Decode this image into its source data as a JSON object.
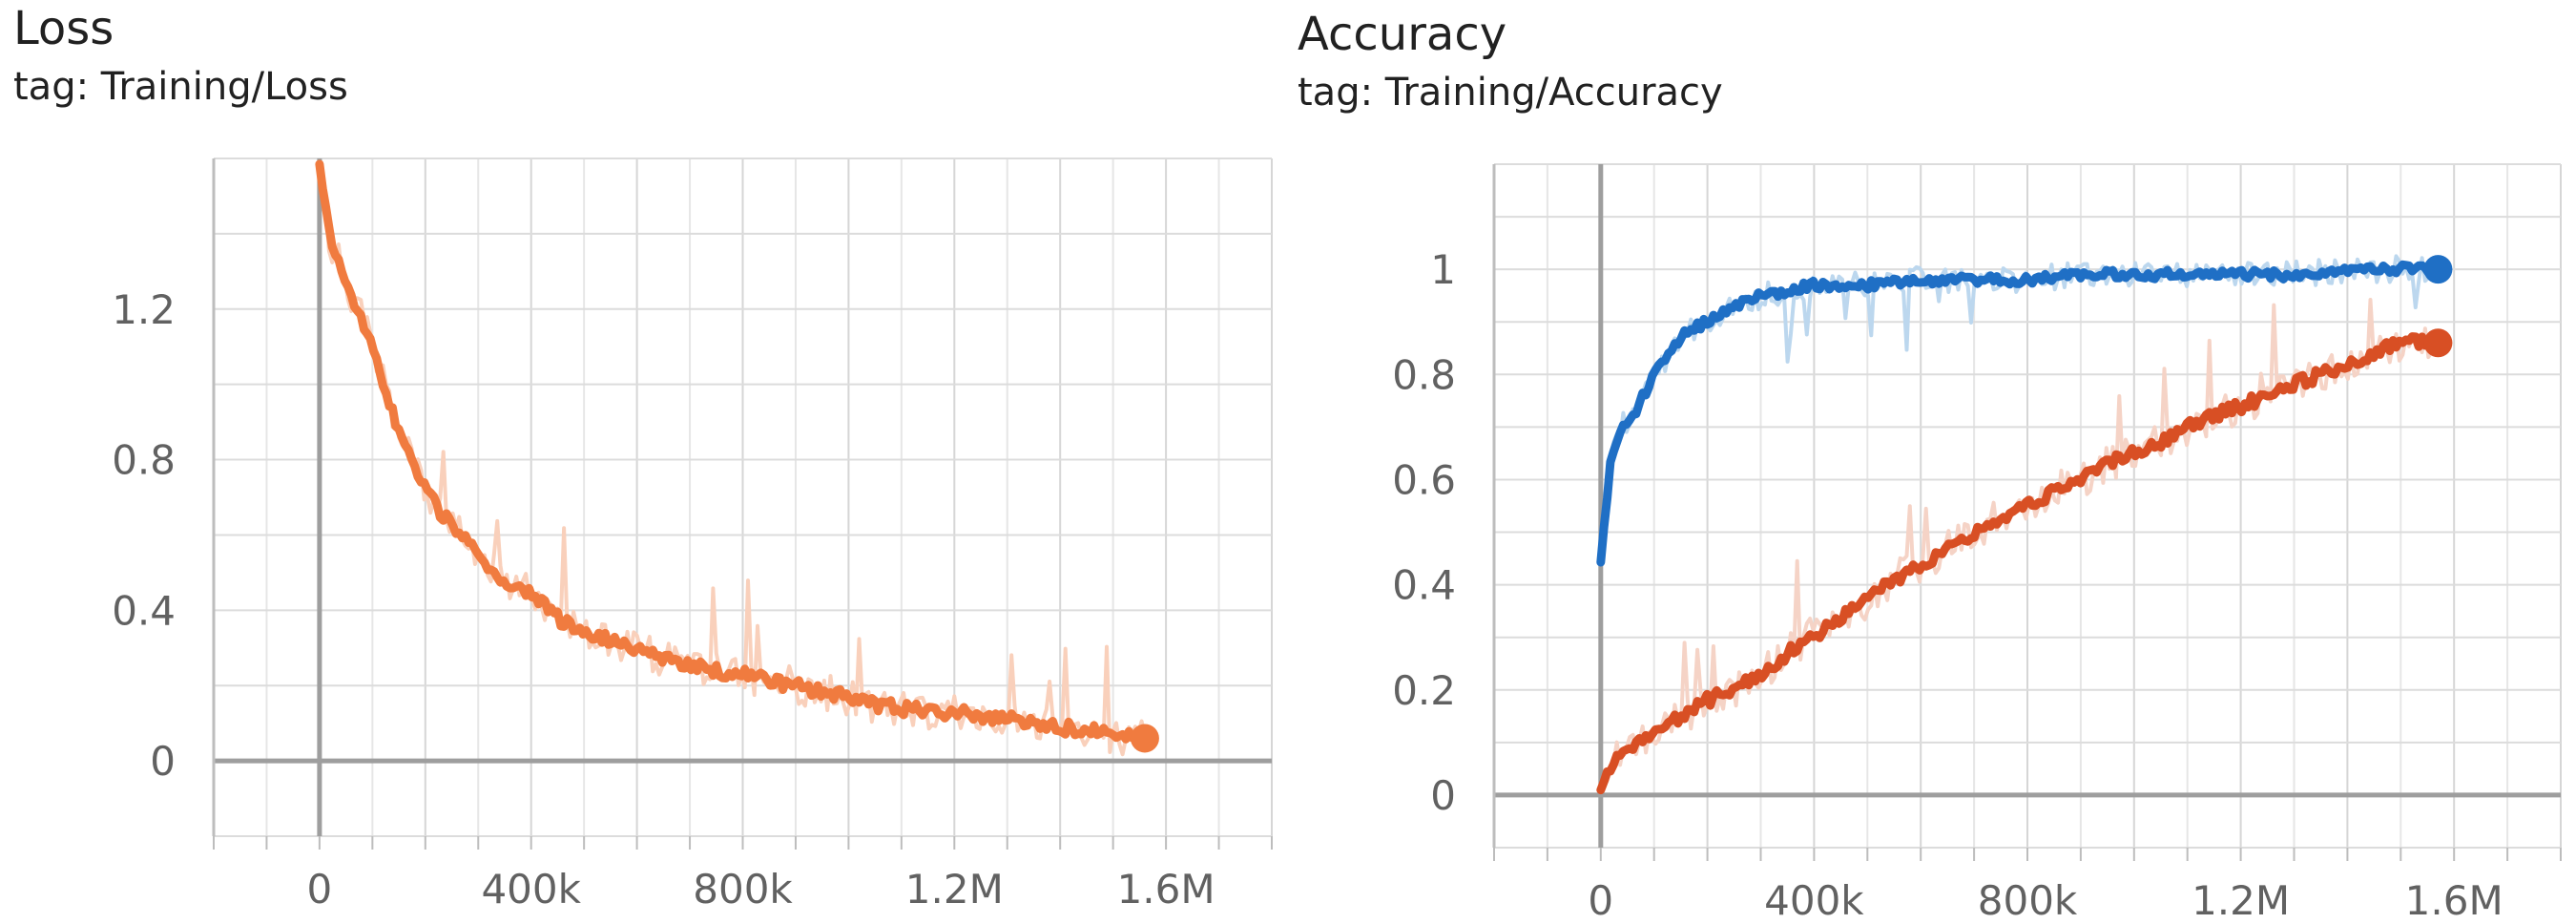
{
  "charts": [
    {
      "title": "Loss",
      "tag": "tag: Training/Loss"
    },
    {
      "title": "Accuracy",
      "tag": "tag: Training/Accuracy"
    }
  ],
  "chart_data": [
    {
      "type": "line",
      "title": "Loss",
      "subtitle": "tag: Training/Loss",
      "x_tick_labels": [
        "0",
        "400k",
        "800k",
        "1.2M",
        "1.6M"
      ],
      "x_ticks": [
        0,
        400000,
        800000,
        1200000,
        1600000
      ],
      "y_tick_labels": [
        "0",
        "0.4",
        "0.8",
        "1.2"
      ],
      "y_ticks": [
        0,
        0.4,
        0.8,
        1.2
      ],
      "xlim": [
        -200000,
        1800000
      ],
      "ylim": [
        -0.2,
        1.6
      ],
      "grid": true,
      "series": [
        {
          "color": "#f07b3f",
          "raw_color": "#f9d0bb",
          "x": [
            0,
            20000,
            50000,
            100000,
            150000,
            200000,
            250000,
            300000,
            350000,
            400000,
            450000,
            500000,
            550000,
            600000,
            650000,
            700000,
            750000,
            800000,
            850000,
            900000,
            950000,
            1000000,
            1050000,
            1100000,
            1150000,
            1200000,
            1250000,
            1300000,
            1350000,
            1400000,
            1450000,
            1500000,
            1560000
          ],
          "y": [
            1.58,
            1.38,
            1.28,
            1.1,
            0.87,
            0.72,
            0.62,
            0.55,
            0.48,
            0.44,
            0.38,
            0.34,
            0.32,
            0.3,
            0.27,
            0.26,
            0.24,
            0.23,
            0.21,
            0.2,
            0.18,
            0.17,
            0.15,
            0.14,
            0.13,
            0.13,
            0.12,
            0.11,
            0.1,
            0.09,
            0.08,
            0.07,
            0.06
          ]
        }
      ]
    },
    {
      "type": "line",
      "title": "Accuracy",
      "subtitle": "tag: Training/Accuracy",
      "x_tick_labels": [
        "0",
        "400k",
        "800k",
        "1.2M",
        "1.6M"
      ],
      "x_ticks": [
        0,
        400000,
        800000,
        1200000,
        1600000
      ],
      "y_tick_labels": [
        "0",
        "0.2",
        "0.4",
        "0.6",
        "0.8",
        "1"
      ],
      "y_ticks": [
        0,
        0.2,
        0.4,
        0.6,
        0.8,
        1
      ],
      "xlim": [
        -200000,
        1800000
      ],
      "ylim": [
        -0.1,
        1.2
      ],
      "grid": true,
      "series": [
        {
          "color": "#1f6fc5",
          "raw_color": "#bcd7ee",
          "x": [
            0,
            10000,
            20000,
            40000,
            60000,
            80000,
            100000,
            130000,
            160000,
            200000,
            250000,
            300000,
            350000,
            400000,
            500000,
            600000,
            700000,
            800000,
            900000,
            1000000,
            1100000,
            1200000,
            1300000,
            1400000,
            1500000,
            1570000
          ],
          "y": [
            0.44,
            0.55,
            0.65,
            0.7,
            0.72,
            0.76,
            0.8,
            0.84,
            0.88,
            0.9,
            0.93,
            0.95,
            0.96,
            0.97,
            0.97,
            0.98,
            0.98,
            0.98,
            0.99,
            0.99,
            0.99,
            0.99,
            0.99,
            1.0,
            1.0,
            1.0
          ]
        },
        {
          "color": "#d84f24",
          "raw_color": "#f5d3c6",
          "x": [
            0,
            20000,
            50000,
            100000,
            150000,
            200000,
            250000,
            300000,
            350000,
            400000,
            450000,
            500000,
            550000,
            600000,
            650000,
            700000,
            750000,
            800000,
            850000,
            900000,
            950000,
            1000000,
            1050000,
            1100000,
            1150000,
            1200000,
            1250000,
            1300000,
            1350000,
            1400000,
            1450000,
            1500000,
            1570000
          ],
          "y": [
            0.02,
            0.06,
            0.09,
            0.12,
            0.15,
            0.18,
            0.2,
            0.23,
            0.27,
            0.3,
            0.34,
            0.37,
            0.41,
            0.44,
            0.47,
            0.5,
            0.53,
            0.55,
            0.58,
            0.6,
            0.63,
            0.65,
            0.67,
            0.7,
            0.72,
            0.74,
            0.76,
            0.78,
            0.8,
            0.82,
            0.84,
            0.86,
            0.86
          ]
        }
      ]
    }
  ]
}
